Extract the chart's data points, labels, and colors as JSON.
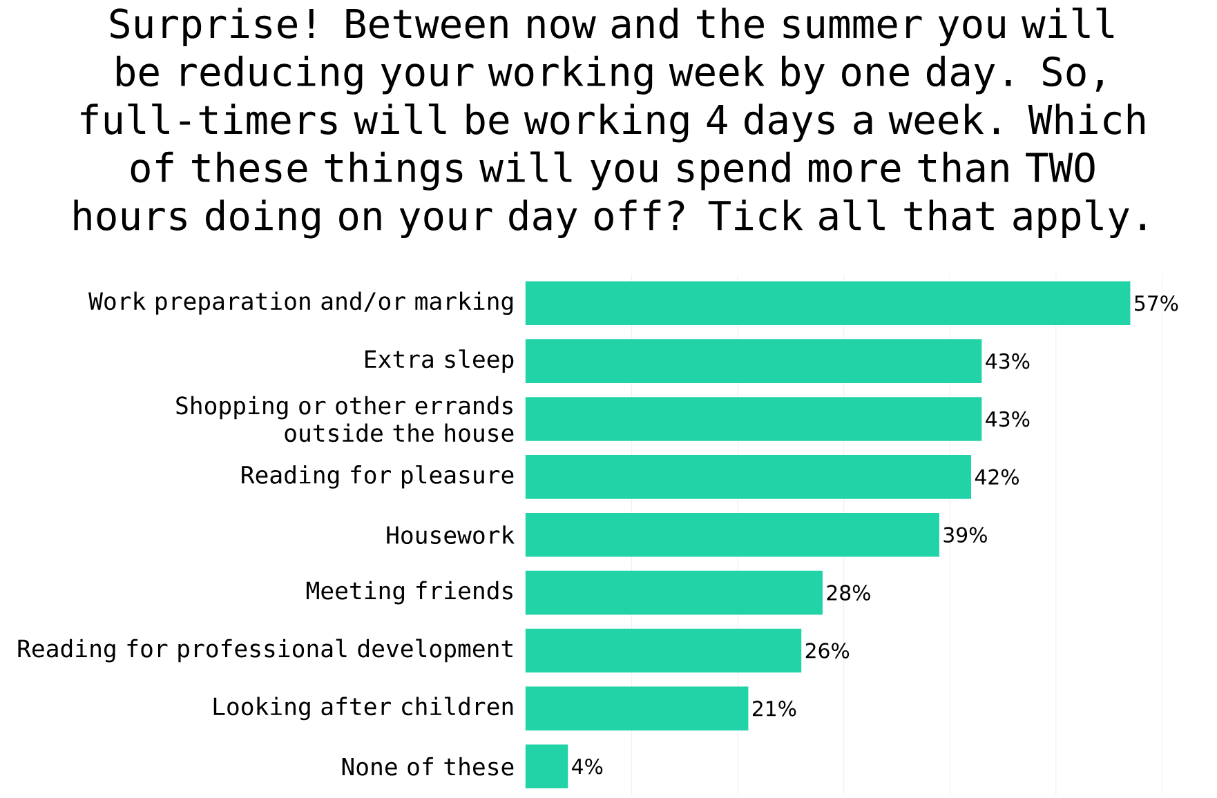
{
  "chart_data": {
    "type": "bar",
    "orientation": "horizontal",
    "title": "Surprise! Between now and the summer you will be reducing your working week by one day. So, full-timers will be working 4 days a week. Which of these things will you spend more than TWO hours doing on your day off? Tick all that apply.",
    "categories": [
      "Work preparation and/or marking",
      "Extra sleep",
      "Shopping or other errands outside the house",
      "Reading for pleasure",
      "Housework",
      "Meeting friends",
      "Reading for professional development",
      "Looking after children",
      "None of these"
    ],
    "values": [
      57,
      43,
      43,
      42,
      39,
      28,
      26,
      21,
      4
    ],
    "value_labels": [
      "57%",
      "43%",
      "43%",
      "42%",
      "39%",
      "28%",
      "26%",
      "21%",
      "4%"
    ],
    "color": "#21d3a7",
    "xlim": [
      0,
      60
    ],
    "xticks": [
      {
        "value": 10,
        "label": null
      },
      {
        "value": 20,
        "label": null
      },
      {
        "value": 30,
        "label": null
      },
      {
        "value": 40,
        "label": null
      },
      {
        "value": 50,
        "label": null
      },
      {
        "value": 60,
        "label": null
      }
    ],
    "grid": "x",
    "tick_labels": "y"
  }
}
